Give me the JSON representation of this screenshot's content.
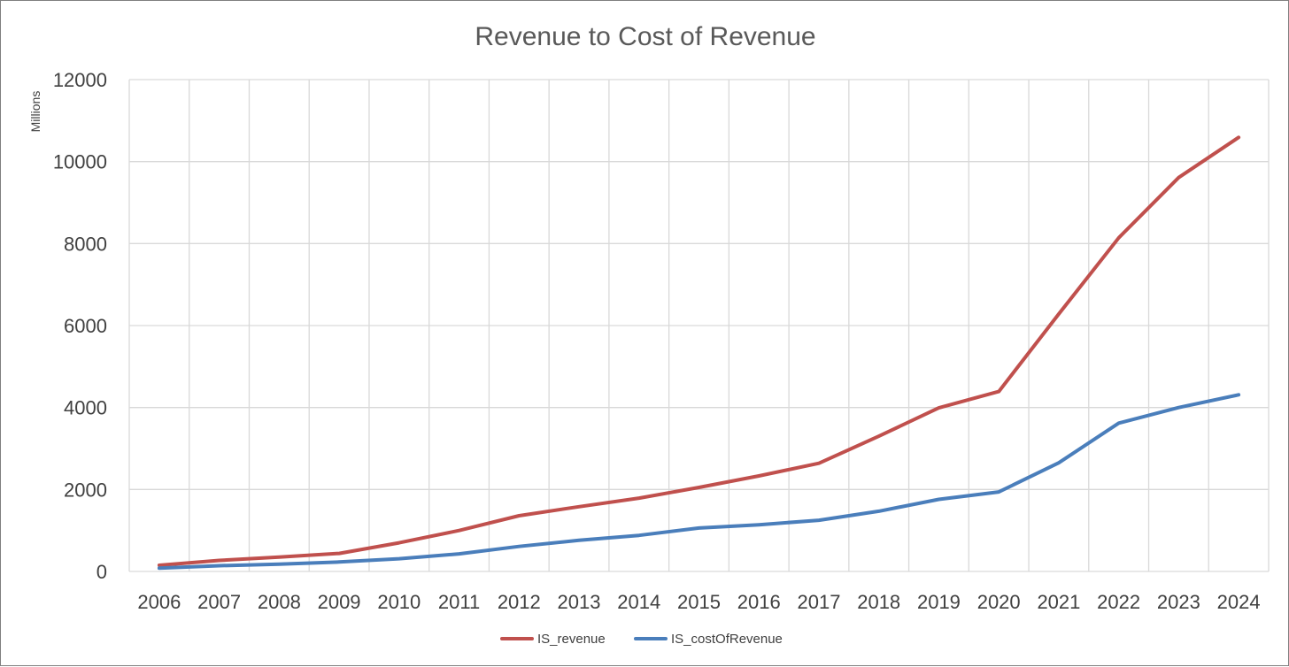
{
  "chart_data": {
    "type": "line",
    "title": "Revenue to Cost of Revenue",
    "ylabel": "Millions",
    "xlabel": "",
    "ylim": [
      0,
      12000
    ],
    "yticks": [
      0,
      2000,
      4000,
      6000,
      8000,
      10000,
      12000
    ],
    "grid": true,
    "legend_position": "bottom",
    "categories": [
      "2006",
      "2007",
      "2008",
      "2009",
      "2010",
      "2011",
      "2012",
      "2013",
      "2014",
      "2015",
      "2016",
      "2017",
      "2018",
      "2019",
      "2020",
      "2021",
      "2022",
      "2023",
      "2024"
    ],
    "series": [
      {
        "name": "IS_revenue",
        "color": "#c0504d",
        "values": [
          150,
          270,
          350,
          440,
          700,
          1000,
          1360,
          1580,
          1790,
          2050,
          2330,
          2640,
          3300,
          3990,
          4390,
          6280,
          8140,
          9610,
          10590
        ]
      },
      {
        "name": "IS_costOfRevenue",
        "color": "#4a7ebb",
        "values": [
          80,
          140,
          180,
          230,
          310,
          430,
          610,
          760,
          880,
          1060,
          1140,
          1250,
          1470,
          1760,
          1940,
          2650,
          3620,
          4000,
          4310
        ]
      }
    ]
  }
}
